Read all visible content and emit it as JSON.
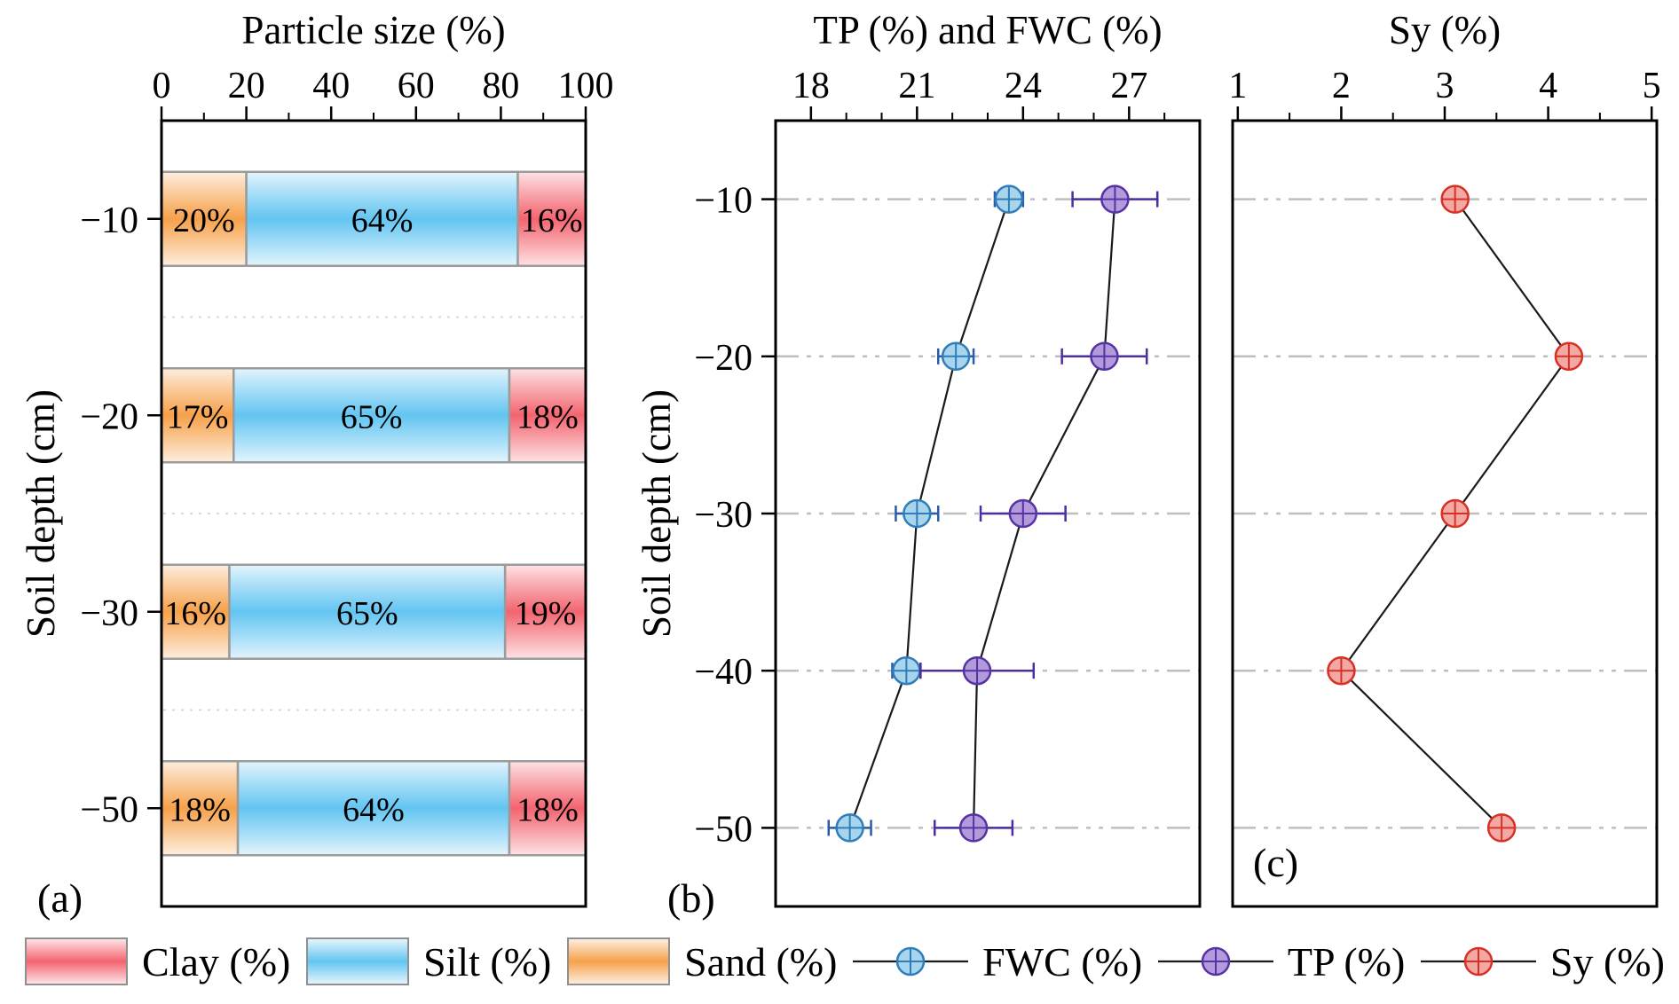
{
  "panels": {
    "a": {
      "label": "(a)",
      "title": "Particle size (%)",
      "ylabel": "Soil depth (cm)"
    },
    "b": {
      "label": "(b)",
      "title": "TP (%) and FWC (%)",
      "ylabel": "Soil depth (cm)"
    },
    "c": {
      "label": "(c)",
      "title": "Sy (%)"
    }
  },
  "chart_data": [
    {
      "type": "bar",
      "panel": "a",
      "title": "Particle size (%)",
      "xlabel": "Particle size (%)",
      "ylabel": "Soil depth (cm)",
      "orientation": "horizontal-stacked",
      "xlim": [
        0,
        100
      ],
      "xticks": [
        0,
        20,
        40,
        60,
        80,
        100
      ],
      "categories": [
        "−10",
        "−20",
        "−30",
        "−50"
      ],
      "value_suffix": "%",
      "series": [
        {
          "name": "Sand (%)",
          "color": "#F6A14B",
          "values": [
            20,
            17,
            16,
            18
          ]
        },
        {
          "name": "Silt (%)",
          "color": "#63C5F1",
          "values": [
            64,
            65,
            65,
            64
          ]
        },
        {
          "name": "Clay (%)",
          "color": "#F3646F",
          "values": [
            16,
            18,
            19,
            18
          ]
        }
      ]
    },
    {
      "type": "line",
      "panel": "b",
      "title": "TP (%) and FWC (%)",
      "ylabel": "Soil depth (cm)",
      "xlim": [
        17,
        29
      ],
      "xticks": [
        18,
        21,
        24,
        27
      ],
      "ylim": [
        -5,
        -55
      ],
      "y": [
        -10,
        -20,
        -30,
        -40,
        -50
      ],
      "yticklabels": [
        "−10",
        "−20",
        "−30",
        "−40",
        "−50"
      ],
      "grid": "horizontal dash-dot",
      "series": [
        {
          "name": "FWC (%)",
          "fill": "#A8D5EC",
          "edge": "#2E7EBB",
          "errcolor": "#2B5BA8",
          "x": [
            23.6,
            22.1,
            21.0,
            20.7,
            19.1
          ],
          "xerr": [
            0.4,
            0.5,
            0.6,
            0.4,
            0.6
          ]
        },
        {
          "name": "TP (%)",
          "fill": "#B29ADB",
          "edge": "#5633A5",
          "errcolor": "#4B2E9E",
          "x": [
            26.6,
            26.3,
            24.0,
            22.7,
            22.6
          ],
          "xerr": [
            1.2,
            1.2,
            1.2,
            1.6,
            1.1
          ]
        }
      ]
    },
    {
      "type": "line",
      "panel": "c",
      "title": "Sy (%)",
      "xlim": [
        0.95,
        5.05
      ],
      "xticks": [
        1,
        2,
        3,
        4,
        5
      ],
      "ylim": [
        -5,
        -55
      ],
      "y": [
        -10,
        -20,
        -30,
        -40,
        -50
      ],
      "grid": "horizontal dash-dot",
      "series": [
        {
          "name": "Sy (%)",
          "fill": "#F2A9A4",
          "edge": "#D93025",
          "errcolor": "#D93025",
          "x": [
            3.1,
            4.2,
            3.1,
            2.0,
            3.55
          ]
        }
      ]
    }
  ],
  "legend": {
    "items": [
      {
        "label": "Clay (%)",
        "type": "swatch",
        "color": "#F3646F"
      },
      {
        "label": "Silt (%)",
        "type": "swatch",
        "color": "#63C5F1"
      },
      {
        "label": "Sand (%)",
        "type": "swatch",
        "color": "#F6A14B"
      },
      {
        "label": "FWC (%)",
        "type": "marker",
        "fill": "#A8D5EC",
        "edge": "#2E7EBB"
      },
      {
        "label": "TP (%)",
        "type": "marker",
        "fill": "#B29ADB",
        "edge": "#5633A5"
      },
      {
        "label": "Sy (%)",
        "type": "marker",
        "fill": "#F2A9A4",
        "edge": "#D93025"
      }
    ]
  }
}
